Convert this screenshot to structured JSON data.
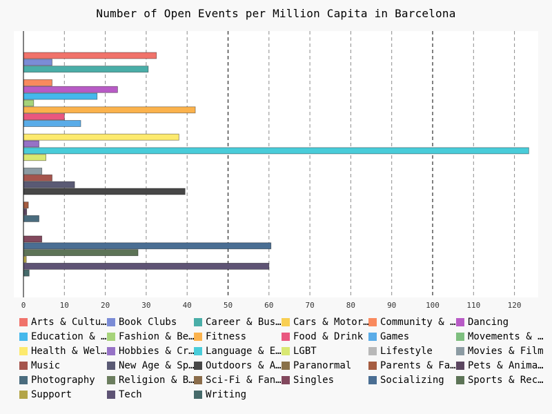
{
  "chart_data": {
    "type": "bar",
    "orientation": "horizontal",
    "title": "Number of Open Events per Million Capita in Barcelona",
    "xlabel": "",
    "ylabel": "",
    "xlim": [
      0,
      125
    ],
    "x_ticks": [
      "0",
      "10",
      "20",
      "30",
      "40",
      "50",
      "60",
      "70",
      "80",
      "90",
      "100",
      "110",
      "120"
    ],
    "grid": "vertical dashed",
    "legend_position": "bottom",
    "series": [
      {
        "name": "Arts & Culture",
        "label": "Arts & Cultu…",
        "color": "#f0736b",
        "values": [
          32.5
        ]
      },
      {
        "name": "Book Clubs",
        "label": "Book Clubs",
        "color": "#7b8cd6",
        "values": [
          7.0
        ]
      },
      {
        "name": "Career & Business",
        "label": "Career & Bus…",
        "color": "#4aaea8",
        "values": [
          30.5
        ]
      },
      {
        "name": "Cars & Motorcycles",
        "label": "Cars & Motor…",
        "color": "#f8cf53",
        "values": [
          0
        ]
      },
      {
        "name": "Community & Environment",
        "label": "Community & …",
        "color": "#f98a5e",
        "values": [
          7.0
        ]
      },
      {
        "name": "Dancing",
        "label": "Dancing",
        "color": "#b85bc6",
        "values": [
          23.0
        ]
      },
      {
        "name": "Education & Learning",
        "label": "Education & …",
        "color": "#45b8ec",
        "values": [
          18.0
        ]
      },
      {
        "name": "Fashion & Beauty",
        "label": "Fashion & Be…",
        "color": "#a6d37a",
        "values": [
          2.5
        ]
      },
      {
        "name": "Fitness",
        "label": "Fitness",
        "color": "#fbb24c",
        "values": [
          42.0
        ]
      },
      {
        "name": "Food & Drink",
        "label": "Food & Drink",
        "color": "#e9577f",
        "values": [
          10.0
        ]
      },
      {
        "name": "Games",
        "label": "Games",
        "color": "#5aace8",
        "values": [
          14.0
        ]
      },
      {
        "name": "Movements & Politics",
        "label": "Movements & …",
        "color": "#7ebf7f",
        "values": [
          0
        ]
      },
      {
        "name": "Health & Wellbeing",
        "label": "Health & Wel…",
        "color": "#fdea6e",
        "values": [
          38.0
        ]
      },
      {
        "name": "Hobbies & Crafts",
        "label": "Hobbies & Cr…",
        "color": "#9672c6",
        "values": [
          3.8
        ]
      },
      {
        "name": "Language & Ethnic Identity",
        "label": "Language & E…",
        "color": "#49ccd9",
        "values": [
          123.5
        ]
      },
      {
        "name": "LGBT",
        "label": "LGBT",
        "color": "#d9e872",
        "values": [
          5.5
        ]
      },
      {
        "name": "Lifestyle",
        "label": "Lifestyle",
        "color": "#b8b8b8",
        "values": [
          0
        ]
      },
      {
        "name": "Movies & Film",
        "label": "Movies & Film",
        "color": "#8c9ba3",
        "values": [
          4.5
        ]
      },
      {
        "name": "Music",
        "label": "Music",
        "color": "#a5554d",
        "values": [
          7.0
        ]
      },
      {
        "name": "New Age & Spirituality",
        "label": "New Age & Sp…",
        "color": "#5a5a74",
        "values": [
          12.5
        ]
      },
      {
        "name": "Outdoors & Adventure",
        "label": "Outdoors & A…",
        "color": "#474747",
        "values": [
          39.5
        ]
      },
      {
        "name": "Paranormal",
        "label": "Paranormal",
        "color": "#8a7148",
        "values": [
          0
        ]
      },
      {
        "name": "Parents & Family",
        "label": "Parents & Fa…",
        "color": "#a55c40",
        "values": [
          1.2
        ]
      },
      {
        "name": "Pets & Animals",
        "label": "Pets & Anima…",
        "color": "#5b4660",
        "values": [
          0.8
        ]
      },
      {
        "name": "Photography",
        "label": "Photography",
        "color": "#4a6c7e",
        "values": [
          3.8
        ]
      },
      {
        "name": "Religion & Beliefs",
        "label": "Religion & B…",
        "color": "#6c7e5f",
        "values": [
          0
        ]
      },
      {
        "name": "Sci-Fi & Fantasy",
        "label": "Sci-Fi & Fan…",
        "color": "#8a6c4a",
        "values": [
          0
        ]
      },
      {
        "name": "Singles",
        "label": "Singles",
        "color": "#82485d",
        "values": [
          4.5
        ]
      },
      {
        "name": "Socializing",
        "label": "Socializing",
        "color": "#4a6e93",
        "values": [
          60.5
        ]
      },
      {
        "name": "Sports & Recreation",
        "label": "Sports & Rec…",
        "color": "#5d7457",
        "values": [
          28.0
        ]
      },
      {
        "name": "Support",
        "label": "Support",
        "color": "#b3a548",
        "values": [
          0.7
        ]
      },
      {
        "name": "Tech",
        "label": "Tech",
        "color": "#5e5374",
        "values": [
          60.0
        ]
      },
      {
        "name": "Writing",
        "label": "Writing",
        "color": "#466a6a",
        "values": [
          1.4
        ]
      }
    ]
  }
}
